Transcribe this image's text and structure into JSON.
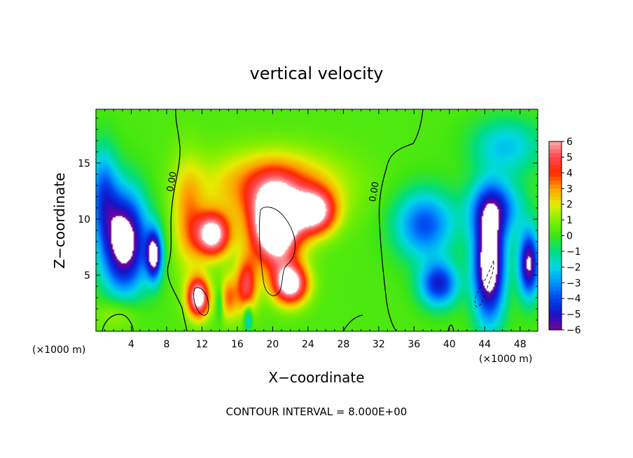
{
  "chart_data": {
    "type": "heatmap",
    "title": "vertical velocity",
    "xlabel": "X−coordinate",
    "ylabel": "Z−coordinate",
    "x_unit_label": "(×1000 m)",
    "x_unit_label_right": "(×1000 m)",
    "xlim": [
      0,
      50
    ],
    "ylim": [
      0,
      19.8
    ],
    "x_ticks": [
      4,
      8,
      12,
      16,
      20,
      24,
      28,
      32,
      36,
      40,
      44,
      48
    ],
    "y_ticks": [
      5,
      10,
      15
    ],
    "colorbar": {
      "range": [
        -6,
        6
      ],
      "ticks": [
        6,
        5,
        4,
        3,
        2,
        1,
        0,
        -1,
        -2,
        -3,
        -4,
        -5,
        -6
      ],
      "tick_labels": [
        "6",
        "5",
        "4",
        "3",
        "2",
        "1",
        "0",
        "−1",
        "−2",
        "−3",
        "−4",
        "−5",
        "−6"
      ],
      "out_of_range_color": "#ffffff"
    },
    "contour_interval_text": "CONTOUR INTERVAL = 8.000E+00",
    "contour_labels": [
      {
        "x": 8.9,
        "z": 13.3,
        "text": "0.00",
        "rotate": -80
      },
      {
        "x": 31.8,
        "z": 12.4,
        "text": "0.00",
        "rotate": -80
      }
    ],
    "features": [
      {
        "x": 3.2,
        "z": 8.0,
        "w": -7.5,
        "sx": 2.6,
        "sz": 4.5,
        "kind": "downdraft"
      },
      {
        "x": 6.6,
        "z": 6.8,
        "w": -6.5,
        "sx": 0.9,
        "sz": 2.2,
        "kind": "downdraft"
      },
      {
        "x": 0.8,
        "z": 12.5,
        "w": -3.5,
        "sx": 1.6,
        "sz": 4.0,
        "kind": "downdraft"
      },
      {
        "x": 10.4,
        "z": 10.2,
        "w": 2.5,
        "sx": 1.8,
        "sz": 5.0,
        "kind": "updraft"
      },
      {
        "x": 11.6,
        "z": 3.0,
        "w": 6.8,
        "sx": 1.3,
        "sz": 1.8,
        "kind": "updraft"
      },
      {
        "x": 13.2,
        "z": 8.6,
        "w": 6.7,
        "sx": 2.0,
        "sz": 2.0,
        "kind": "updraft"
      },
      {
        "x": 20.3,
        "z": 9.3,
        "w": 9.0,
        "sx": 2.8,
        "sz": 3.5,
        "kind": "updraft"
      },
      {
        "x": 20.0,
        "z": 13.0,
        "w": 3.5,
        "sx": 7.5,
        "sz": 3.0,
        "kind": "updraft"
      },
      {
        "x": 24.8,
        "z": 10.6,
        "w": 6.0,
        "sx": 2.4,
        "sz": 2.0,
        "kind": "updraft"
      },
      {
        "x": 22.0,
        "z": 4.2,
        "w": 6.8,
        "sx": 2.0,
        "sz": 1.8,
        "kind": "updraft"
      },
      {
        "x": 17.0,
        "z": 4.0,
        "w": 4.5,
        "sx": 1.2,
        "sz": 2.5,
        "kind": "updraft"
      },
      {
        "x": 15.0,
        "z": 3.0,
        "w": 3.0,
        "sx": 1.0,
        "sz": 2.0,
        "kind": "updraft"
      },
      {
        "x": 14.0,
        "z": 2.5,
        "w": -1.8,
        "sx": 0.4,
        "sz": 1.5,
        "kind": "downdraft"
      },
      {
        "x": 17.2,
        "z": 1.2,
        "w": -3.0,
        "sx": 0.5,
        "sz": 1.2,
        "kind": "downdraft"
      },
      {
        "x": 37.2,
        "z": 9.5,
        "w": -4.2,
        "sx": 3.4,
        "sz": 3.0,
        "kind": "downdraft"
      },
      {
        "x": 38.8,
        "z": 4.2,
        "w": -5.0,
        "sx": 2.2,
        "sz": 2.0,
        "kind": "downdraft"
      },
      {
        "x": 44.5,
        "z": 6.0,
        "w": -8.0,
        "sx": 1.8,
        "sz": 5.0,
        "kind": "downdraft"
      },
      {
        "x": 45.2,
        "z": 11.0,
        "w": -4.0,
        "sx": 3.0,
        "sz": 2.5,
        "kind": "downdraft"
      },
      {
        "x": 49.0,
        "z": 6.0,
        "w": -6.5,
        "sx": 1.2,
        "sz": 3.0,
        "kind": "downdraft"
      },
      {
        "x": 46.5,
        "z": 16.5,
        "w": -2.5,
        "sx": 4.0,
        "sz": 2.5,
        "kind": "downdraft"
      },
      {
        "x": 2.5,
        "z": 1.5,
        "w": 1.5,
        "sx": 2.5,
        "sz": 1.5,
        "kind": "updraft"
      }
    ]
  }
}
